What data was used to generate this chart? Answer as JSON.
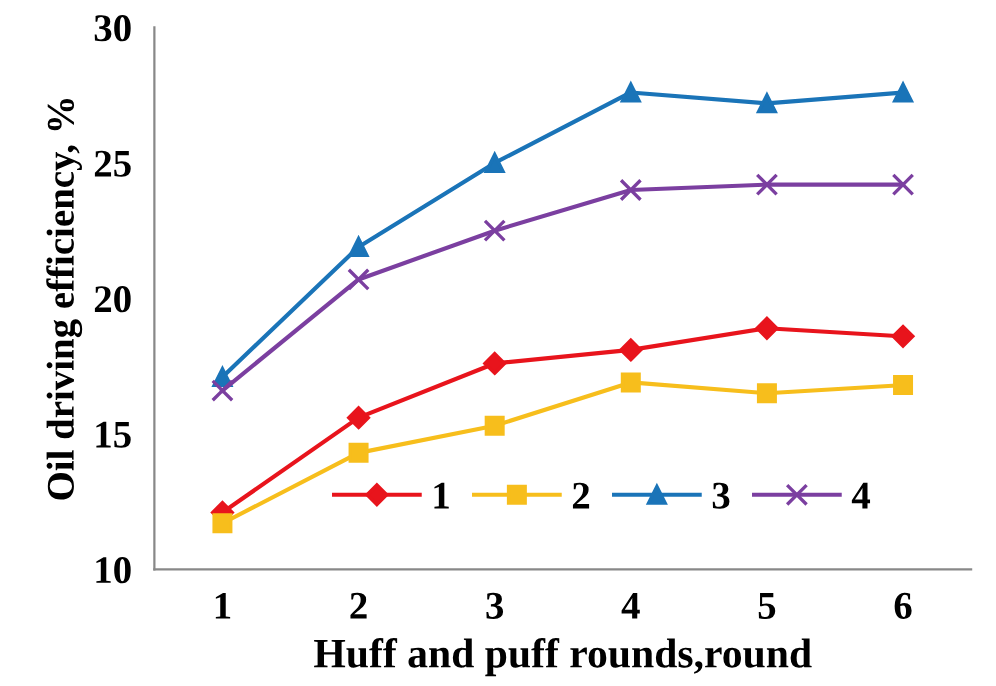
{
  "chart_data": {
    "type": "line",
    "xlabel": "Huff and puff rounds,round",
    "ylabel": "Oil driving efficiency, %",
    "categories": [
      "1",
      "2",
      "3",
      "4",
      "5",
      "6"
    ],
    "series": [
      {
        "name": "1",
        "color": "#e8141c",
        "marker": "diamond",
        "values": [
          12.1,
          15.6,
          17.6,
          18.1,
          18.9,
          18.6
        ]
      },
      {
        "name": "2",
        "color": "#f7be1c",
        "marker": "square",
        "values": [
          11.7,
          14.3,
          15.3,
          16.9,
          16.5,
          16.8
        ]
      },
      {
        "name": "3",
        "color": "#1a74b8",
        "marker": "triangle",
        "values": [
          17.1,
          21.9,
          25.0,
          27.6,
          27.2,
          27.6
        ]
      },
      {
        "name": "4",
        "color": "#7b3fa0",
        "marker": "cross",
        "values": [
          16.6,
          20.7,
          22.5,
          24.0,
          24.2,
          24.2
        ]
      }
    ],
    "ylim": [
      10,
      30
    ],
    "yticks": [
      10,
      15,
      20,
      25,
      30
    ],
    "grid": false,
    "legend": "bottom right"
  }
}
